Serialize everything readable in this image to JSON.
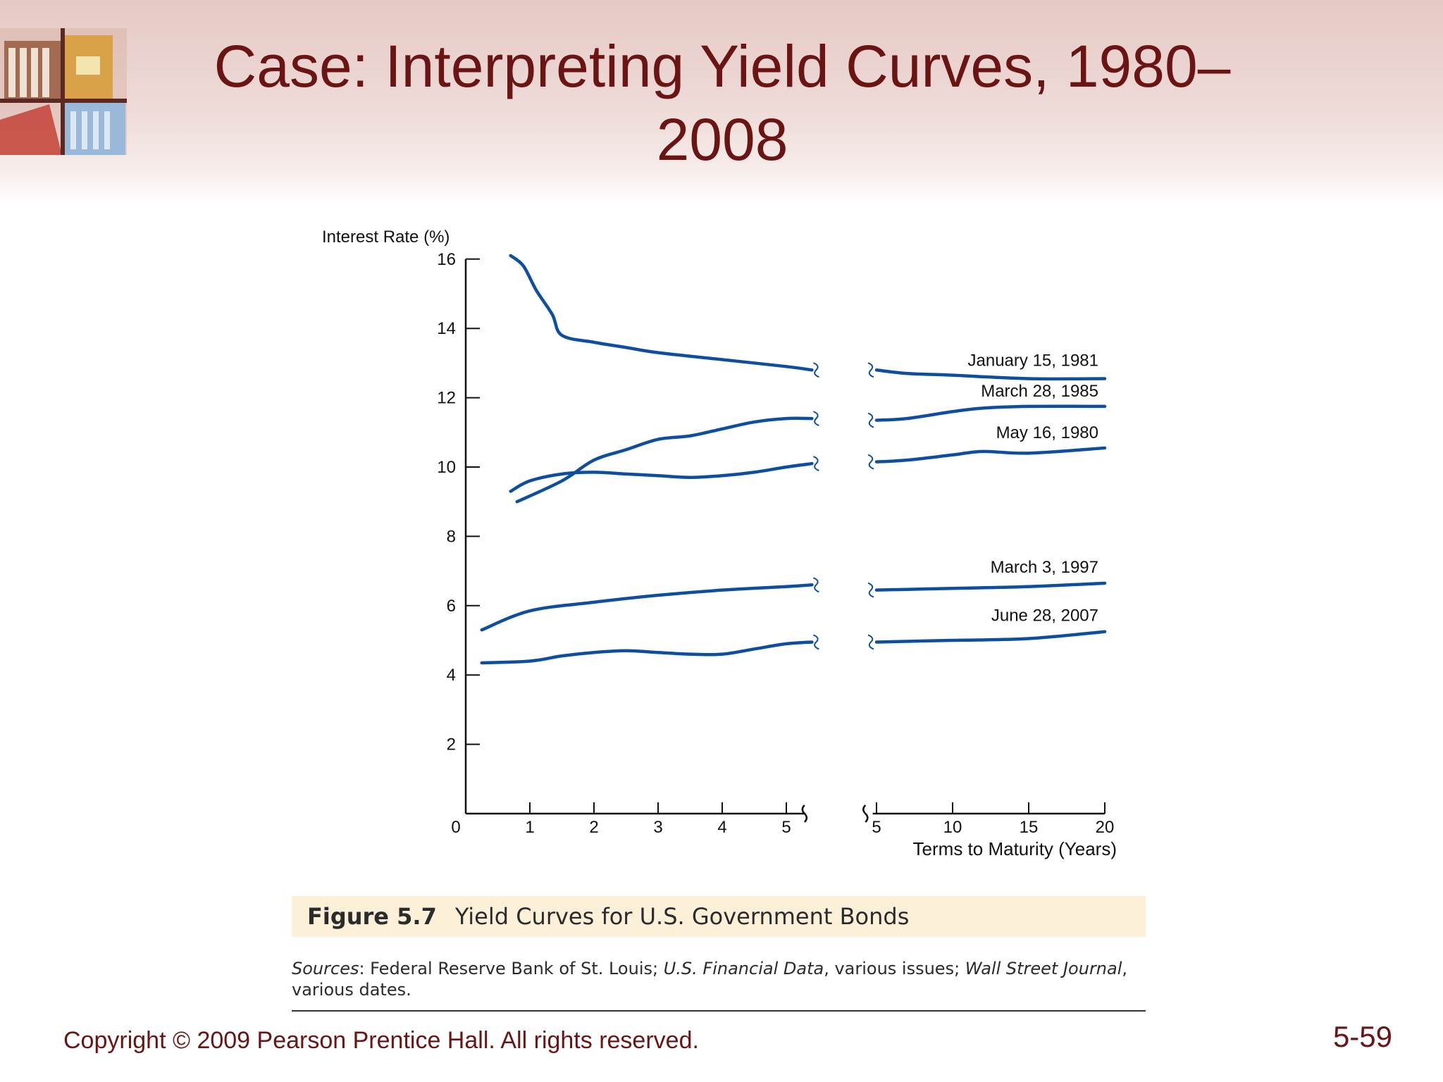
{
  "slide": {
    "title_line1": "Case: Interpreting Yield Curves, 1980–",
    "title_line2": "2008",
    "copyright": "Copyright © 2009 Pearson Prentice Hall. All rights reserved.",
    "slide_number": "5-59",
    "figure_label": "Figure 5.7",
    "figure_title": "Yield Curves for U.S. Government Bonds",
    "sources_label": "Sources",
    "sources_text_1": ": Federal Reserve Bank of St. Louis; ",
    "sources_italic_1": "U.S. Financial Data",
    "sources_text_2": ", various issues; ",
    "sources_italic_2": "Wall Street Journal",
    "sources_text_3": ", various dates.",
    "title_color": "#6b1414",
    "curve_color": "#0d4f9e"
  },
  "chart_data": {
    "type": "line",
    "ylabel": "Interest Rate (%)",
    "xlabel": "Terms to Maturity (Years)",
    "ylim": [
      0,
      16
    ],
    "y_ticks": [
      2,
      4,
      6,
      8,
      10,
      12,
      14,
      16
    ],
    "origin_label": "0",
    "x_ticks_left": [
      1,
      2,
      3,
      4,
      5
    ],
    "x_ticks_right": [
      5,
      10,
      15,
      20
    ],
    "x_axis_break": "between 5 (short-term segment) and 5 (long-term segment)",
    "series": [
      {
        "name": "January 15, 1981",
        "short_term": [
          [
            0.7,
            16.1
          ],
          [
            0.9,
            15.8
          ],
          [
            1.1,
            15.1
          ],
          [
            1.35,
            14.4
          ],
          [
            1.5,
            13.8
          ],
          [
            2.0,
            13.6
          ],
          [
            2.5,
            13.45
          ],
          [
            3.0,
            13.3
          ],
          [
            4.0,
            13.1
          ],
          [
            5.0,
            12.9
          ],
          [
            5.4,
            12.8
          ]
        ],
        "long_term": [
          [
            5,
            12.8
          ],
          [
            7,
            12.7
          ],
          [
            10,
            12.65
          ],
          [
            15,
            12.55
          ],
          [
            20,
            12.55
          ]
        ]
      },
      {
        "name": "March 28, 1985",
        "short_term": [
          [
            0.8,
            9.0
          ],
          [
            1.5,
            9.6
          ],
          [
            2.0,
            10.2
          ],
          [
            2.5,
            10.5
          ],
          [
            3.0,
            10.8
          ],
          [
            3.5,
            10.9
          ],
          [
            4.0,
            11.1
          ],
          [
            4.5,
            11.3
          ],
          [
            5.0,
            11.4
          ],
          [
            5.4,
            11.4
          ]
        ],
        "long_term": [
          [
            5,
            11.35
          ],
          [
            7,
            11.4
          ],
          [
            10,
            11.6
          ],
          [
            12,
            11.7
          ],
          [
            15,
            11.75
          ],
          [
            20,
            11.75
          ]
        ]
      },
      {
        "name": "May 16, 1980",
        "short_term": [
          [
            0.7,
            9.3
          ],
          [
            1.0,
            9.6
          ],
          [
            1.5,
            9.8
          ],
          [
            2.0,
            9.85
          ],
          [
            2.5,
            9.8
          ],
          [
            3.0,
            9.75
          ],
          [
            3.5,
            9.7
          ],
          [
            4.0,
            9.75
          ],
          [
            4.5,
            9.85
          ],
          [
            5.0,
            10.0
          ],
          [
            5.4,
            10.1
          ]
        ],
        "long_term": [
          [
            5,
            10.15
          ],
          [
            7,
            10.2
          ],
          [
            10,
            10.35
          ],
          [
            12,
            10.45
          ],
          [
            15,
            10.4
          ],
          [
            20,
            10.55
          ]
        ]
      },
      {
        "name": "March 3, 1997",
        "short_term": [
          [
            0.25,
            5.3
          ],
          [
            1.0,
            5.85
          ],
          [
            2.0,
            6.1
          ],
          [
            3.0,
            6.3
          ],
          [
            4.0,
            6.45
          ],
          [
            5.0,
            6.55
          ],
          [
            5.4,
            6.6
          ]
        ],
        "long_term": [
          [
            5,
            6.45
          ],
          [
            10,
            6.5
          ],
          [
            15,
            6.55
          ],
          [
            20,
            6.65
          ]
        ]
      },
      {
        "name": "June 28, 2007",
        "short_term": [
          [
            0.25,
            4.35
          ],
          [
            1.0,
            4.4
          ],
          [
            1.5,
            4.55
          ],
          [
            2.0,
            4.65
          ],
          [
            2.5,
            4.7
          ],
          [
            3.0,
            4.65
          ],
          [
            3.5,
            4.6
          ],
          [
            4.0,
            4.6
          ],
          [
            4.5,
            4.75
          ],
          [
            5.0,
            4.9
          ],
          [
            5.4,
            4.95
          ]
        ],
        "long_term": [
          [
            5,
            4.95
          ],
          [
            10,
            5.0
          ],
          [
            15,
            5.05
          ],
          [
            20,
            5.25
          ]
        ]
      }
    ]
  }
}
